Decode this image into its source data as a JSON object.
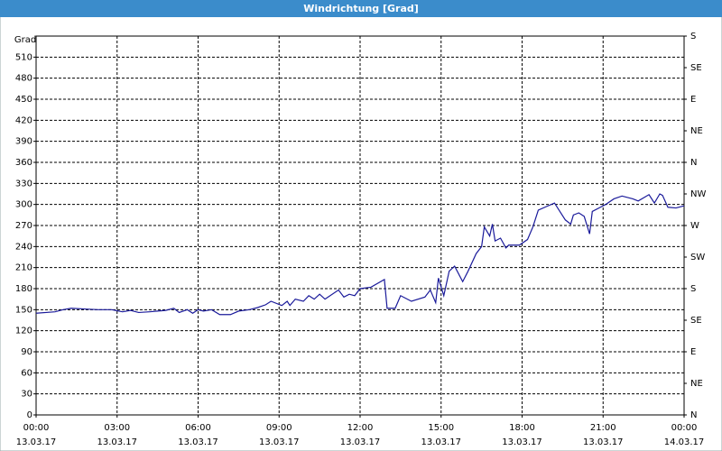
{
  "chart_data": {
    "type": "line",
    "title": "Windrichtung [Grad]",
    "y_label": "Grad",
    "x": [
      0,
      0.7,
      1.0,
      1.3,
      1.8,
      2.3,
      2.8,
      3.2,
      3.5,
      3.8,
      4.2,
      4.5,
      4.8,
      5.1,
      5.3,
      5.6,
      5.8,
      6.0,
      6.2,
      6.5,
      6.8,
      7.2,
      7.5,
      7.9,
      8.2,
      8.5,
      8.7,
      9.1,
      9.3,
      9.4,
      9.6,
      9.9,
      10.1,
      10.3,
      10.5,
      10.7,
      11.2,
      11.4,
      11.6,
      11.8,
      12.0,
      12.4,
      12.9,
      13.0,
      13.3,
      13.5,
      13.9,
      14.4,
      14.6,
      14.8,
      14.9,
      15.1,
      15.3,
      15.5,
      15.8,
      16.0,
      16.3,
      16.5,
      16.6,
      16.8,
      16.9,
      17.0,
      17.2,
      17.4,
      17.5,
      17.9,
      18.2,
      18.4,
      18.6,
      18.9,
      19.2,
      19.6,
      19.8,
      19.9,
      20.1,
      20.3,
      20.5,
      20.6,
      20.9,
      21.1,
      21.4,
      21.7,
      22.1,
      22.3,
      22.7,
      22.9,
      23.1,
      23.2,
      23.4,
      23.7,
      24.0
    ],
    "series": [
      {
        "color": "#1a1a9a",
        "values": [
          145,
          147,
          150,
          152,
          151,
          150,
          150,
          147,
          149,
          146,
          147,
          148,
          149,
          152,
          146,
          150,
          145,
          150,
          148,
          150,
          143,
          143,
          148,
          150,
          153,
          157,
          162,
          156,
          162,
          156,
          165,
          162,
          170,
          165,
          172,
          165,
          178,
          168,
          172,
          170,
          180,
          182,
          193,
          152,
          152,
          170,
          162,
          168,
          178,
          160,
          195,
          170,
          205,
          212,
          190,
          205,
          230,
          240,
          268,
          255,
          272,
          248,
          252,
          238,
          242,
          242,
          250,
          268,
          292,
          297,
          302,
          278,
          272,
          285,
          288,
          283,
          258,
          290,
          296,
          300,
          308,
          312,
          308,
          305,
          314,
          302,
          315,
          313,
          296,
          295,
          298
        ]
      }
    ],
    "xlim": [
      0,
      24
    ],
    "xticks": [
      {
        "value": 0,
        "label": "00:00",
        "date": "13.03.17"
      },
      {
        "value": 3,
        "label": "03:00",
        "date": "13.03.17"
      },
      {
        "value": 6,
        "label": "06:00",
        "date": "13.03.17"
      },
      {
        "value": 9,
        "label": "09:00",
        "date": "13.03.17"
      },
      {
        "value": 12,
        "label": "12:00",
        "date": "13.03.17"
      },
      {
        "value": 15,
        "label": "15:00",
        "date": "13.03.17"
      },
      {
        "value": 18,
        "label": "18:00",
        "date": "13.03.17"
      },
      {
        "value": 21,
        "label": "21:00",
        "date": "13.03.17"
      },
      {
        "value": 24,
        "label": "00:00",
        "date": "14.03.17"
      }
    ],
    "ylim": [
      0,
      540
    ],
    "yticks": [
      0,
      30,
      60,
      90,
      120,
      150,
      180,
      210,
      240,
      270,
      300,
      330,
      360,
      390,
      420,
      450,
      480,
      510
    ],
    "y2lim": [
      0,
      540
    ],
    "y2ticks": [
      {
        "value": 0,
        "label": "N"
      },
      {
        "value": 45,
        "label": "NE"
      },
      {
        "value": 90,
        "label": "E"
      },
      {
        "value": 135,
        "label": "SE"
      },
      {
        "value": 180,
        "label": "S"
      },
      {
        "value": 225,
        "label": "SW"
      },
      {
        "value": 270,
        "label": "W"
      },
      {
        "value": 315,
        "label": "NW"
      },
      {
        "value": 360,
        "label": "N"
      },
      {
        "value": 405,
        "label": "NE"
      },
      {
        "value": 450,
        "label": "E"
      },
      {
        "value": 495,
        "label": "SE"
      },
      {
        "value": 540,
        "label": "S"
      }
    ],
    "grid": true
  }
}
